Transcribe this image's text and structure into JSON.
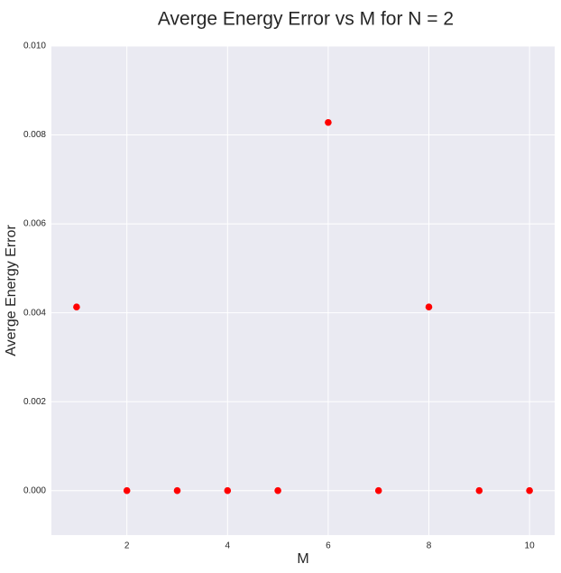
{
  "chart_data": {
    "type": "scatter",
    "title": "Averge Energy Error vs M for N = 2",
    "xlabel": "M",
    "ylabel": "Averge Energy Error",
    "xlim": [
      0.5,
      10.5
    ],
    "ylim": [
      -0.001,
      0.01
    ],
    "x_ticks": [
      2,
      4,
      6,
      8,
      10
    ],
    "y_ticks": [
      0.0,
      0.002,
      0.004,
      0.006,
      0.008,
      0.01
    ],
    "x_tick_labels": [
      "2",
      "4",
      "6",
      "8",
      "10"
    ],
    "y_tick_labels": [
      "0.000",
      "0.002",
      "0.004",
      "0.006",
      "0.008",
      "0.010"
    ],
    "grid": true,
    "colors": {
      "marker": "#ff0000",
      "plot_background": "#eaeaf2",
      "grid": "#ffffff"
    },
    "series": [
      {
        "x": [
          1,
          2,
          3,
          4,
          5,
          6,
          7,
          8,
          9,
          10
        ],
        "y": [
          0.00413,
          0.0,
          0.0,
          0.0,
          0.0,
          0.00828,
          0.0,
          0.00413,
          0.0,
          0.0
        ]
      }
    ]
  }
}
